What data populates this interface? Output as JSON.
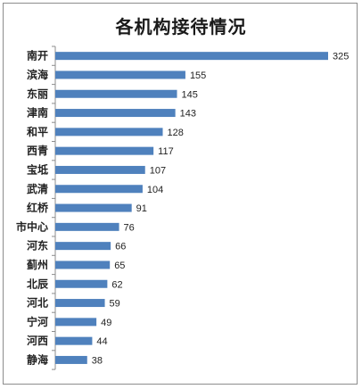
{
  "chart_data": {
    "type": "bar",
    "orientation": "horizontal",
    "title": "各机构接待情况",
    "categories": [
      "南开",
      "滨海",
      "东丽",
      "津南",
      "和平",
      "西青",
      "宝坻",
      "武清",
      "红桥",
      "市中心",
      "河东",
      "蓟州",
      "北辰",
      "河北",
      "宁河",
      "河西",
      "静海"
    ],
    "values": [
      325,
      155,
      145,
      143,
      128,
      117,
      107,
      104,
      91,
      76,
      66,
      65,
      62,
      59,
      49,
      44,
      38
    ],
    "xlabel": "",
    "ylabel": "",
    "xlim": [
      0,
      325
    ],
    "grid": false,
    "legend": "none",
    "data_labels": true,
    "bar_color": "#4f81bd",
    "axis_color": "#8c8c8c"
  }
}
